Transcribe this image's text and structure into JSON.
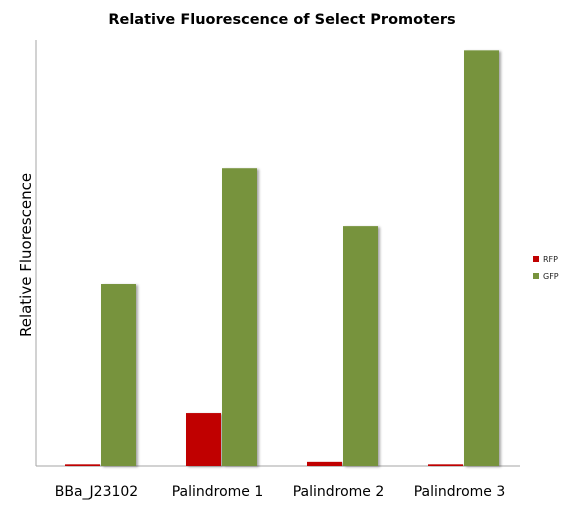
{
  "chart_data": {
    "type": "bar",
    "title": "Relative Fluorescence of Select Promoters",
    "xlabel": "",
    "ylabel": "Relative Fluorescence",
    "categories": [
      "BBa_J23102",
      "Palindrome 1",
      "Palindrome 2",
      "Palindrome 3"
    ],
    "series": [
      {
        "name": "RFP",
        "color": "#c00000",
        "values": [
          0.4,
          12.8,
          1.0,
          0.4
        ]
      },
      {
        "name": "GFP",
        "color": "#77933c",
        "values": [
          44,
          72,
          58,
          100.5
        ]
      }
    ],
    "ylim": [
      0,
      103
    ],
    "grid": false,
    "legend_position": "right"
  }
}
